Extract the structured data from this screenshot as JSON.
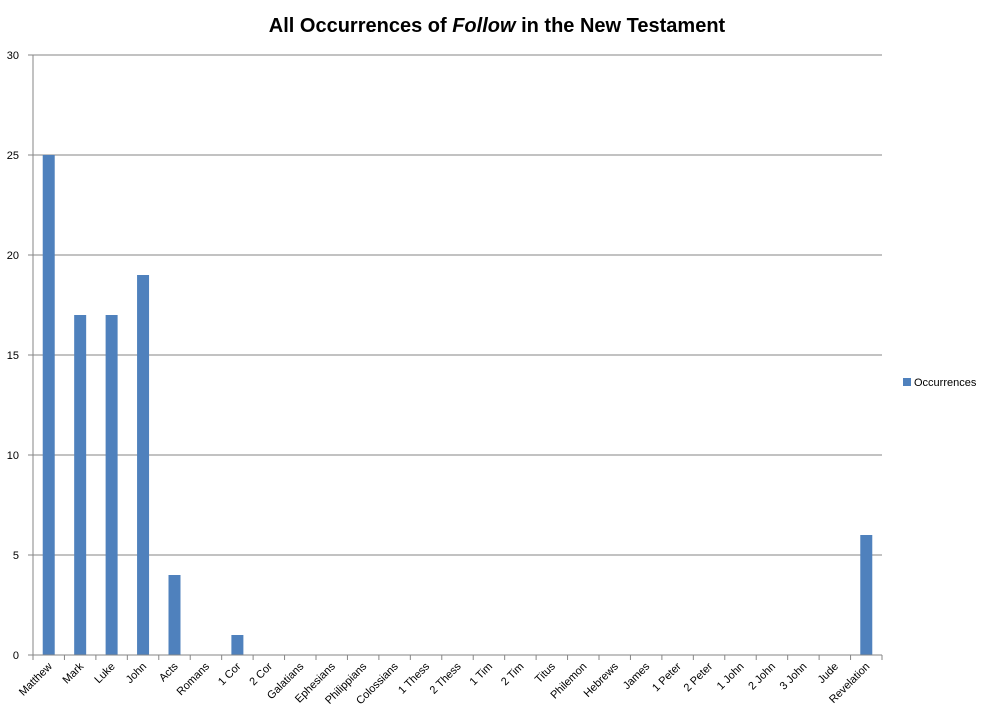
{
  "chart_data": {
    "type": "bar",
    "title": {
      "before": "All Occurrences of ",
      "italic": "Follow",
      "after": " in the New Testament"
    },
    "categories": [
      "Matthew",
      "Mark",
      "Luke",
      "John",
      "Acts",
      "Romans",
      "1 Cor",
      "2 Cor",
      "Galatians",
      "Ephesians",
      "Philippians",
      "Colossians",
      "1 Thess",
      "2 Thess",
      "1 Tim",
      "2 Tim",
      "Titus",
      "Philemon",
      "Hebrews",
      "James",
      "1 Peter",
      "2 Peter",
      "1 John",
      "2 John",
      "3 John",
      "Jude",
      "Revelation"
    ],
    "series": [
      {
        "name": "Occurrences",
        "values": [
          25,
          17,
          17,
          19,
          4,
          0,
          1,
          0,
          0,
          0,
          0,
          0,
          0,
          0,
          0,
          0,
          0,
          0,
          0,
          0,
          0,
          0,
          0,
          0,
          0,
          0,
          6
        ],
        "color": "#4f81bd"
      }
    ],
    "ylim": [
      0,
      30
    ],
    "yticks": [
      0,
      5,
      10,
      15,
      20,
      25,
      30
    ],
    "grid": true,
    "legend": "right",
    "xlabel": "",
    "ylabel": ""
  }
}
